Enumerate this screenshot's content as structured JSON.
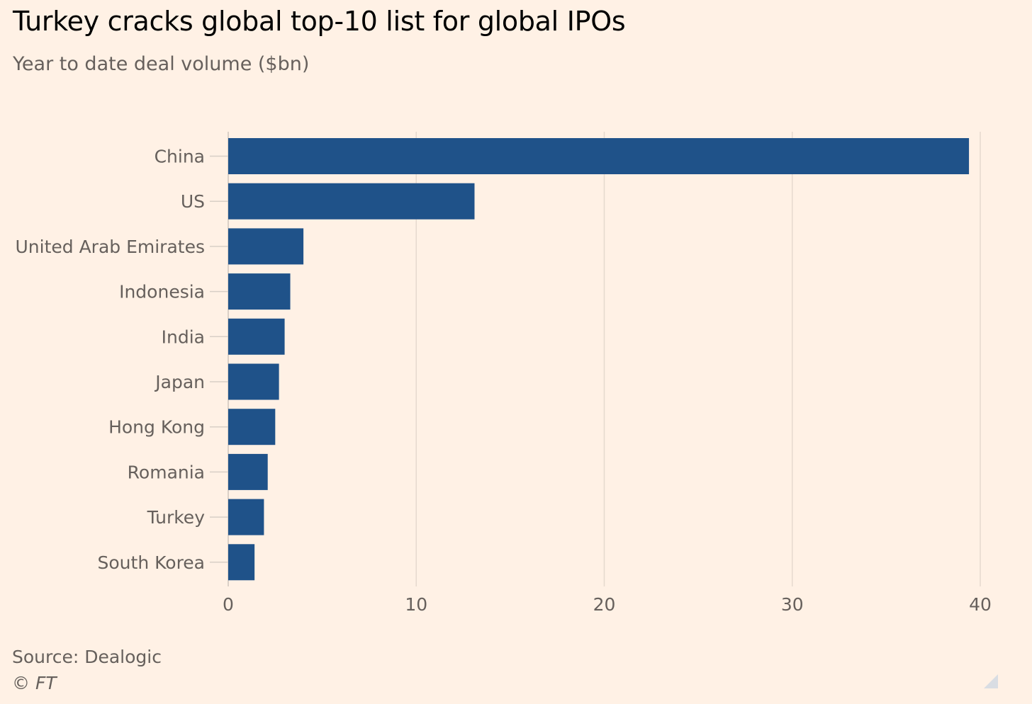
{
  "colors": {
    "background": "#fff1e5",
    "bar": "#1f5289",
    "gridline": "#e6d9ce",
    "text": "#66605c",
    "title": "#000000"
  },
  "chart_data": {
    "type": "bar",
    "orientation": "horizontal",
    "title": "Turkey cracks global top-10 list for global IPOs",
    "subtitle": "Year to date deal volume ($bn)",
    "categories": [
      "China",
      "US",
      "United Arab Emirates",
      "Indonesia",
      "India",
      "Japan",
      "Hong Kong",
      "Romania",
      "Turkey",
      "South Korea"
    ],
    "values": [
      39.4,
      13.1,
      4.0,
      3.3,
      3.0,
      2.7,
      2.5,
      2.1,
      1.9,
      1.4
    ],
    "xlim": [
      0,
      40
    ],
    "xticks": [
      "0",
      "10",
      "20",
      "30",
      "40"
    ],
    "grid": true,
    "legend": "none"
  },
  "footer": {
    "source": "Source: Dealogic",
    "copyright": "© FT"
  }
}
